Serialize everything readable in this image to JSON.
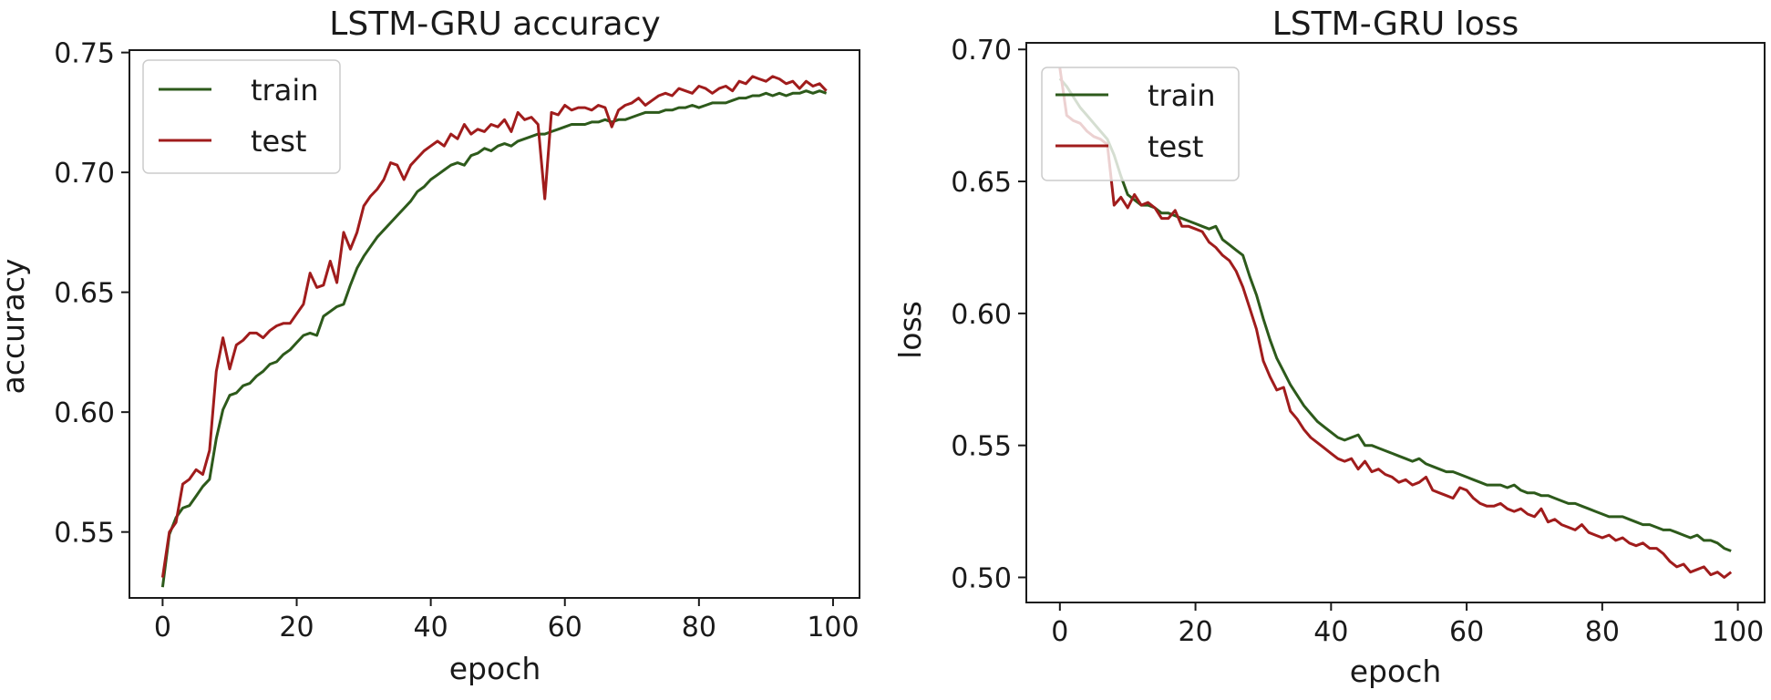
{
  "chart_data": [
    {
      "type": "line",
      "title": "LSTM-GRU accuracy",
      "xlabel": "epoch",
      "ylabel": "accuracy",
      "xlim": [
        -4.95,
        103.95
      ],
      "ylim": [
        0.5225,
        0.751
      ],
      "xticks": [
        0,
        20,
        40,
        60,
        80,
        100
      ],
      "yticks": [
        0.55,
        0.6,
        0.65,
        0.7,
        0.75
      ],
      "ytick_labels": [
        "0.55",
        "0.60",
        "0.65",
        "0.70",
        "0.75"
      ],
      "legend_position": "upper left",
      "grid": false,
      "series": [
        {
          "name": "train",
          "color": "#2d5a1b",
          "values": [
            0.527,
            0.549,
            0.556,
            0.56,
            0.561,
            0.565,
            0.569,
            0.572,
            0.589,
            0.601,
            0.607,
            0.608,
            0.611,
            0.612,
            0.615,
            0.617,
            0.62,
            0.621,
            0.624,
            0.626,
            0.629,
            0.632,
            0.633,
            0.632,
            0.64,
            0.642,
            0.644,
            0.645,
            0.653,
            0.66,
            0.665,
            0.669,
            0.673,
            0.676,
            0.679,
            0.682,
            0.685,
            0.688,
            0.692,
            0.694,
            0.697,
            0.699,
            0.701,
            0.703,
            0.704,
            0.703,
            0.707,
            0.708,
            0.71,
            0.709,
            0.711,
            0.712,
            0.711,
            0.713,
            0.714,
            0.715,
            0.716,
            0.716,
            0.717,
            0.718,
            0.719,
            0.72,
            0.72,
            0.72,
            0.721,
            0.721,
            0.722,
            0.721,
            0.722,
            0.722,
            0.723,
            0.724,
            0.725,
            0.725,
            0.725,
            0.726,
            0.726,
            0.727,
            0.727,
            0.728,
            0.727,
            0.728,
            0.729,
            0.729,
            0.729,
            0.73,
            0.731,
            0.731,
            0.732,
            0.732,
            0.733,
            0.732,
            0.733,
            0.732,
            0.733,
            0.733,
            0.734,
            0.733,
            0.734,
            0.733
          ]
        },
        {
          "name": "test",
          "color": "#a01c1c",
          "values": [
            0.531,
            0.55,
            0.554,
            0.57,
            0.572,
            0.576,
            0.574,
            0.584,
            0.617,
            0.631,
            0.618,
            0.628,
            0.63,
            0.633,
            0.633,
            0.631,
            0.634,
            0.636,
            0.637,
            0.637,
            0.641,
            0.645,
            0.658,
            0.652,
            0.653,
            0.663,
            0.654,
            0.675,
            0.668,
            0.675,
            0.686,
            0.69,
            0.693,
            0.697,
            0.704,
            0.703,
            0.697,
            0.703,
            0.706,
            0.709,
            0.711,
            0.713,
            0.711,
            0.716,
            0.714,
            0.72,
            0.716,
            0.718,
            0.717,
            0.72,
            0.719,
            0.722,
            0.717,
            0.725,
            0.722,
            0.723,
            0.72,
            0.689,
            0.725,
            0.724,
            0.728,
            0.726,
            0.727,
            0.727,
            0.726,
            0.728,
            0.727,
            0.719,
            0.726,
            0.728,
            0.729,
            0.731,
            0.728,
            0.73,
            0.732,
            0.733,
            0.732,
            0.735,
            0.734,
            0.733,
            0.736,
            0.735,
            0.733,
            0.735,
            0.736,
            0.734,
            0.738,
            0.737,
            0.74,
            0.739,
            0.738,
            0.74,
            0.739,
            0.737,
            0.738,
            0.735,
            0.738,
            0.736,
            0.737,
            0.734
          ]
        }
      ]
    },
    {
      "type": "line",
      "title": "LSTM-GRU loss",
      "xlabel": "epoch",
      "ylabel": "loss",
      "xlim": [
        -4.95,
        103.95
      ],
      "ylim": [
        0.4905,
        0.7025
      ],
      "xticks": [
        0,
        20,
        40,
        60,
        80,
        100
      ],
      "yticks": [
        0.5,
        0.55,
        0.6,
        0.65,
        0.7
      ],
      "ytick_labels": [
        "0.50",
        "0.55",
        "0.60",
        "0.65",
        "0.70"
      ],
      "legend_position": "upper left",
      "grid": false,
      "series": [
        {
          "name": "train",
          "color": "#2d5a1b",
          "values": [
            0.689,
            0.686,
            0.682,
            0.678,
            0.675,
            0.672,
            0.669,
            0.666,
            0.66,
            0.652,
            0.645,
            0.643,
            0.641,
            0.641,
            0.64,
            0.638,
            0.638,
            0.637,
            0.636,
            0.635,
            0.634,
            0.633,
            0.632,
            0.633,
            0.628,
            0.626,
            0.624,
            0.622,
            0.614,
            0.607,
            0.598,
            0.59,
            0.583,
            0.578,
            0.573,
            0.569,
            0.565,
            0.562,
            0.559,
            0.557,
            0.555,
            0.553,
            0.552,
            0.553,
            0.554,
            0.55,
            0.55,
            0.549,
            0.548,
            0.547,
            0.546,
            0.545,
            0.544,
            0.545,
            0.543,
            0.542,
            0.541,
            0.54,
            0.54,
            0.539,
            0.538,
            0.537,
            0.536,
            0.535,
            0.535,
            0.535,
            0.534,
            0.535,
            0.533,
            0.532,
            0.532,
            0.531,
            0.531,
            0.53,
            0.529,
            0.528,
            0.528,
            0.527,
            0.526,
            0.525,
            0.524,
            0.523,
            0.523,
            0.523,
            0.522,
            0.521,
            0.52,
            0.52,
            0.519,
            0.518,
            0.518,
            0.517,
            0.516,
            0.515,
            0.516,
            0.514,
            0.514,
            0.513,
            0.511,
            0.51
          ]
        },
        {
          "name": "test",
          "color": "#a01c1c",
          "values": [
            0.693,
            0.675,
            0.673,
            0.672,
            0.669,
            0.667,
            0.666,
            0.664,
            0.641,
            0.644,
            0.64,
            0.645,
            0.641,
            0.642,
            0.64,
            0.636,
            0.636,
            0.639,
            0.633,
            0.633,
            0.632,
            0.631,
            0.627,
            0.625,
            0.622,
            0.62,
            0.616,
            0.61,
            0.602,
            0.594,
            0.582,
            0.576,
            0.571,
            0.572,
            0.563,
            0.56,
            0.556,
            0.553,
            0.551,
            0.549,
            0.547,
            0.545,
            0.544,
            0.545,
            0.541,
            0.544,
            0.54,
            0.541,
            0.539,
            0.538,
            0.536,
            0.537,
            0.535,
            0.536,
            0.538,
            0.533,
            0.532,
            0.531,
            0.53,
            0.534,
            0.533,
            0.53,
            0.528,
            0.527,
            0.527,
            0.528,
            0.526,
            0.525,
            0.526,
            0.524,
            0.523,
            0.526,
            0.521,
            0.522,
            0.52,
            0.519,
            0.518,
            0.52,
            0.517,
            0.516,
            0.515,
            0.516,
            0.514,
            0.515,
            0.513,
            0.512,
            0.513,
            0.511,
            0.511,
            0.509,
            0.506,
            0.504,
            0.505,
            0.502,
            0.503,
            0.504,
            0.501,
            0.502,
            0.5,
            0.502
          ]
        }
      ]
    }
  ]
}
